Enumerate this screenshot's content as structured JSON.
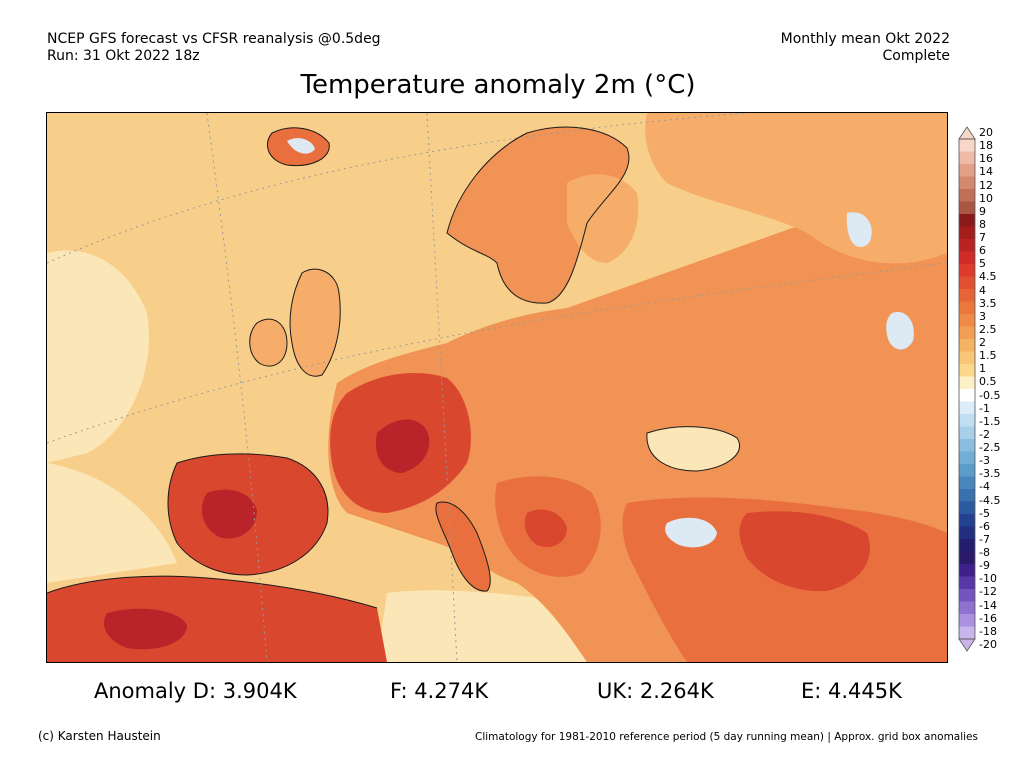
{
  "header": {
    "line1_left": "NCEP GFS forecast vs CFSR reanalysis @0.5deg",
    "line2_left": "Run: 31 Okt 2022 18z",
    "line1_right": "Monthly mean Okt 2022",
    "line2_right": "Complete"
  },
  "title": "Temperature anomaly 2m (°C)",
  "map": {
    "region": "Europe",
    "land_colors": {
      "ocean_warm": "#f8cf8a",
      "ocean_pale": "#fbe6b7",
      "light_orange": "#f6ad6a",
      "orange": "#f09355",
      "red_orange": "#e9703e",
      "red": "#d9472f",
      "dark_red": "#b8242a",
      "cool": "#dde9f3"
    }
  },
  "colorbar": {
    "labels": [
      "20",
      "18",
      "16",
      "14",
      "12",
      "10",
      "9",
      "8",
      "7",
      "6",
      "5",
      "4.5",
      "4",
      "3.5",
      "3",
      "2.5",
      "2",
      "1.5",
      "1",
      "0.5",
      "-0.5",
      "-1",
      "-1.5",
      "-2",
      "-2.5",
      "-3",
      "-3.5",
      "-4",
      "-4.5",
      "-5",
      "-6",
      "-7",
      "-8",
      "-9",
      "-10",
      "-12",
      "-14",
      "-16",
      "-18",
      "-20"
    ],
    "colors": [
      "#f7d7c8",
      "#eebba6",
      "#e2a088",
      "#d18a70",
      "#c07058",
      "#a95742",
      "#8a1a1a",
      "#a31d1d",
      "#ba2323",
      "#cf2c27",
      "#dd3b2b",
      "#e2512f",
      "#e66436",
      "#eb773d",
      "#ef8a47",
      "#f29e55",
      "#f5b262",
      "#f8c676",
      "#fad98d",
      "#fdf0c6",
      "#ffffff",
      "#dcecf9",
      "#c2def2",
      "#a7cfe8",
      "#8bbede",
      "#72aed4",
      "#5c9cc8",
      "#4886bb",
      "#3970ad",
      "#2c5aa0",
      "#24418f",
      "#222e80",
      "#231f6d",
      "#2b1a6a",
      "#40208a",
      "#5a37a6",
      "#7455bd",
      "#8f72cf",
      "#ab91de",
      "#c9b4ec"
    ]
  },
  "stats": {
    "anomaly_d": "Anomaly D: 3.904K",
    "f": "F: 4.274K",
    "uk": "UK: 2.264K",
    "e": "E: 4.445K"
  },
  "footer": {
    "left": "(c) Karsten Haustein",
    "right": "Climatology for 1981-2010 reference period (5 day running mean) | Approx. grid box anomalies"
  }
}
